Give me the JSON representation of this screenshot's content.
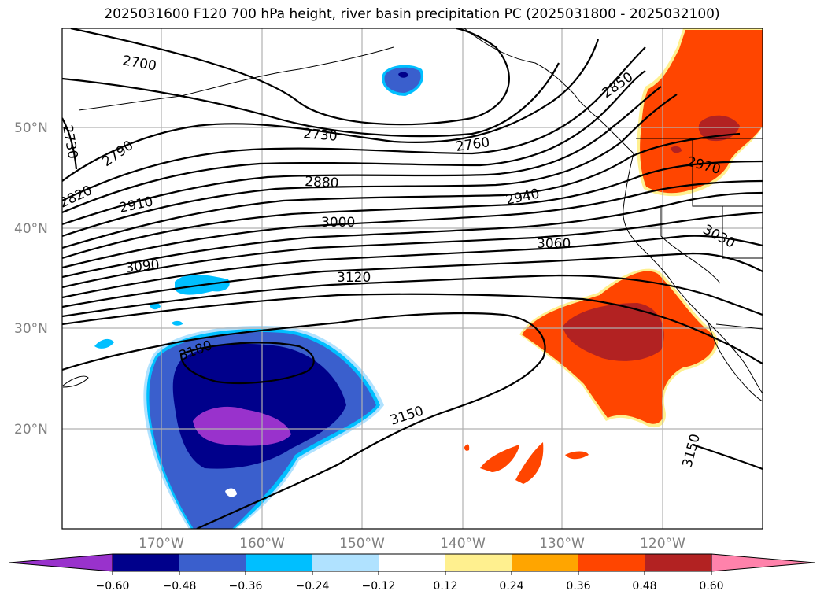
{
  "title": "2025031600 F120 700 hPa height, river basin precipitation PC (2025031800 - 2025032100)",
  "map": {
    "lat_labels": [
      "50°N",
      "40°N",
      "30°N",
      "20°N"
    ],
    "lon_labels": [
      "170°W",
      "160°W",
      "150°W",
      "140°W",
      "130°W",
      "120°W"
    ],
    "gridlines": true,
    "fill_colors": {
      "dark_purple": "#9932cc",
      "navy": "#00008b",
      "royal_blue": "#3a5fcd",
      "deep_sky_blue": "#00bfff",
      "light_blue": "#b0e2ff",
      "yellow": "#fff08f",
      "orange": "#ffa500",
      "orange_red": "#ff4500",
      "firebrick": "#b22222",
      "pink": "#ff82ab"
    },
    "contour_labels": [
      "2700",
      "2730",
      "2730",
      "2760",
      "2790",
      "2820",
      "2850",
      "2880",
      "2910",
      "2940",
      "2970",
      "3000",
      "3030",
      "3060",
      "3090",
      "3120",
      "3150",
      "3150",
      "3180"
    ]
  },
  "colorbar": {
    "ticks": [
      "−0.60",
      "−0.48",
      "−0.36",
      "−0.24",
      "−0.12",
      "0.12",
      "0.24",
      "0.36",
      "0.48",
      "0.60"
    ],
    "colors": [
      "#9932cc",
      "#00008b",
      "#3a5fcd",
      "#00bfff",
      "#b0e2ff",
      "#ffffff",
      "#fff08f",
      "#ffa500",
      "#ff4500",
      "#b22222",
      "#ff82ab"
    ]
  }
}
